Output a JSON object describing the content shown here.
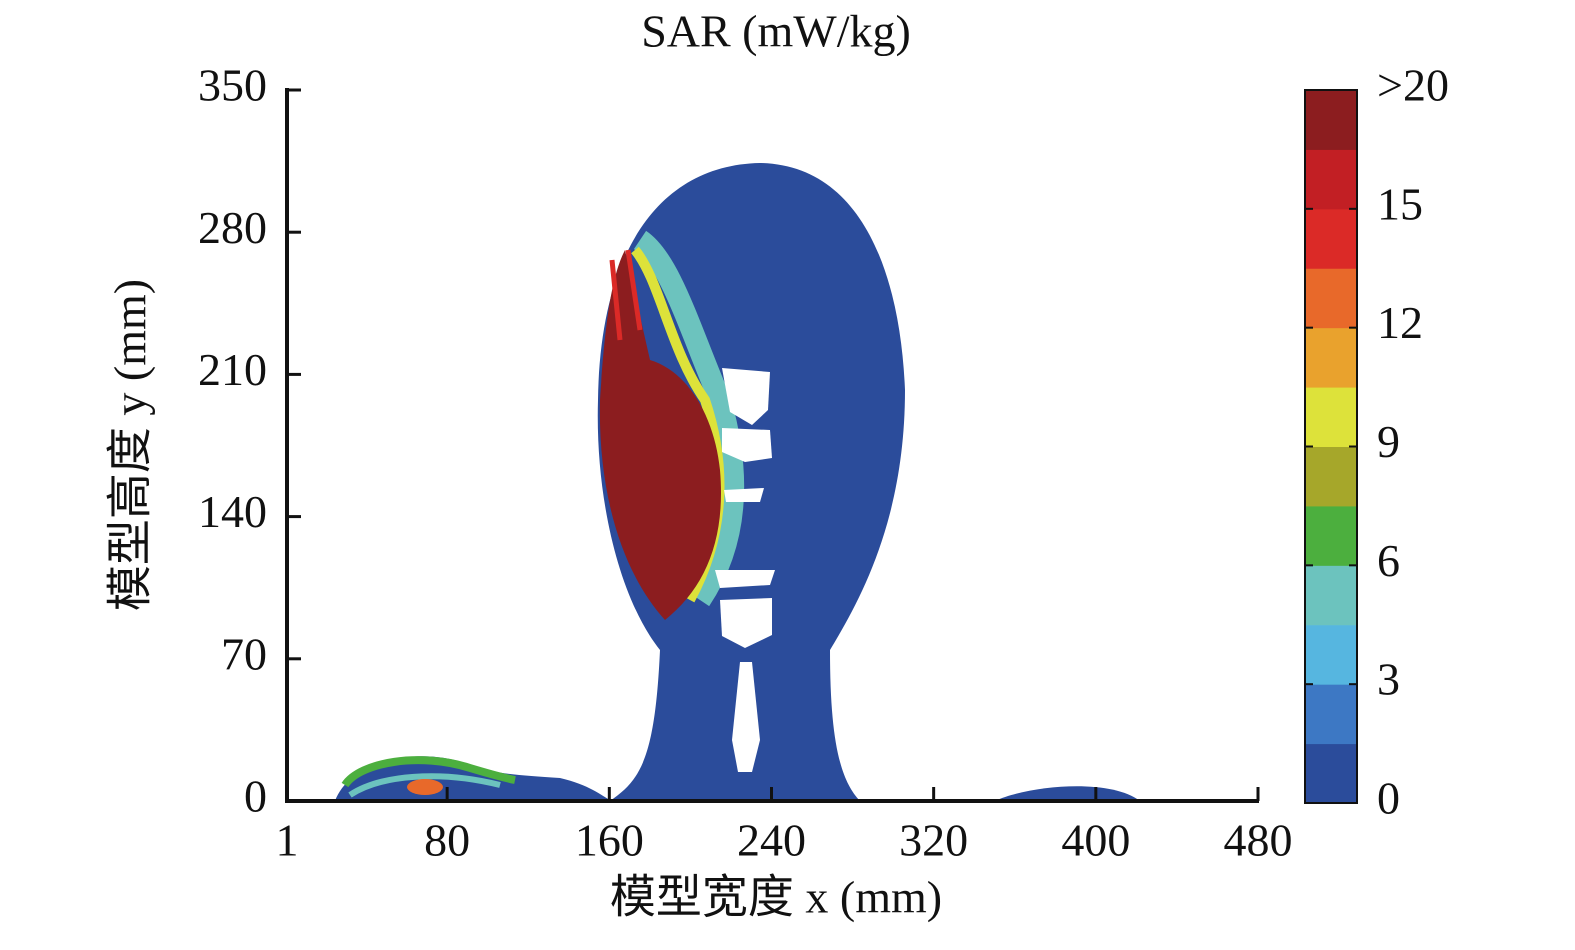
{
  "chart_data": {
    "type": "heatmap",
    "title": "SAR (mW/kg)",
    "xlabel": "模型宽度 x (mm)",
    "ylabel": "模型高度 y (mm)",
    "xlim": [
      1,
      480
    ],
    "xticks": [
      1,
      80,
      160,
      240,
      320,
      400,
      480
    ],
    "ylim": [
      0,
      350
    ],
    "yticks": [
      0,
      70,
      140,
      210,
      280,
      350
    ],
    "colorbar": {
      "lim": [
        0,
        18
      ],
      "ticks": [
        0,
        3,
        6,
        9,
        12,
        15,
        {
          "value": 18,
          "label": ">20"
        }
      ],
      "colors": [
        "#2b4c9b",
        "#3d78c4",
        "#56b6e0",
        "#6cc3be",
        "#4caf3e",
        "#a6a72a",
        "#dde23a",
        "#e9a22d",
        "#e8692a",
        "#db2a27",
        "#c21f24",
        "#8c1d1f"
      ]
    }
  }
}
